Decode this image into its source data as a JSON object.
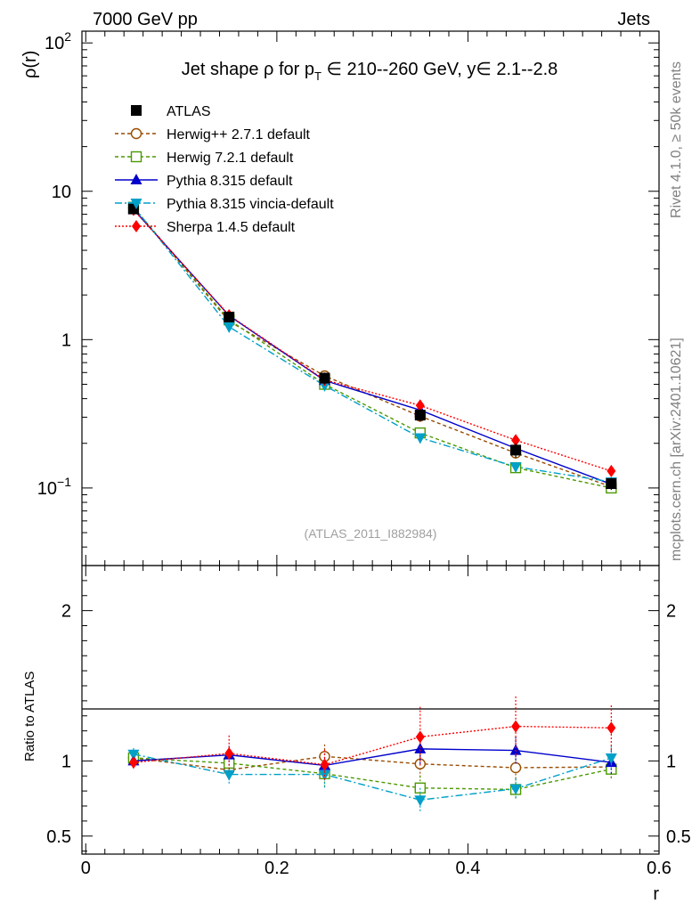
{
  "header": {
    "energy_label": "7000 GeV pp",
    "category_label": "Jets"
  },
  "side_labels": {
    "rivet": "Rivet 4.1.0, ≥ 50k events",
    "mcplots": "mcplots.cern.ch [arXiv:2401.10621]"
  },
  "chart_data": {
    "type": "line",
    "title": "Jet shape ρ for p_T ∈ 210--260 GeV, y∈ 2.1--2.8",
    "title_parts": {
      "prefix": "Jet shape ρ for p",
      "sub": "T",
      "suffix": " ∈ 210--260 GeV, y∈ 2.1--2.8"
    },
    "analysis_tag": "(ATLAS_2011_I882984)",
    "xlabel": "r",
    "ylabel": "ρ(r)",
    "ratio_ylabel": "Ratio to ATLAS",
    "xlim": [
      -0.004,
      0.6
    ],
    "ylim": [
      0.03,
      120
    ],
    "ratio_ylim": [
      0.38,
      2.3
    ],
    "yscale": "log",
    "x_ticks": [
      {
        "value": 0,
        "label": "0"
      },
      {
        "value": 0.2,
        "label": "0.2"
      },
      {
        "value": 0.4,
        "label": "0.4"
      },
      {
        "value": 0.6,
        "label": "0.6"
      }
    ],
    "y_ticks": [
      {
        "value": 0.1,
        "base": "10",
        "exp": "−1"
      },
      {
        "value": 1,
        "base": "1",
        "exp": ""
      },
      {
        "value": 10,
        "base": "10",
        "exp": ""
      },
      {
        "value": 100,
        "base": "10",
        "exp": "2"
      }
    ],
    "ratio_ticks": [
      {
        "value": 0.5,
        "label": "0.5"
      },
      {
        "value": 1,
        "label": "1"
      },
      {
        "value": 2,
        "label": "2"
      }
    ],
    "x": [
      0.05,
      0.15,
      0.25,
      0.35,
      0.45,
      0.55
    ],
    "reference": {
      "name": "ATLAS",
      "values": [
        7.6,
        1.42,
        0.55,
        0.31,
        0.18,
        0.107
      ],
      "errors": [
        0.4,
        0.1,
        0.05,
        0.03,
        0.02,
        0.01
      ]
    },
    "series": [
      {
        "name": "Herwig++ 2.7.1 default",
        "color": "#994c00",
        "dash": "4,3",
        "marker": "circle-open",
        "values": [
          7.75,
          1.33,
          0.57,
          0.305,
          0.172,
          0.102
        ],
        "ratio": [
          1.02,
          0.94,
          1.03,
          0.98,
          0.955,
          0.96
        ],
        "ratio_err": [
          0.04,
          0.06,
          0.08,
          0.09,
          0.08,
          0.08
        ]
      },
      {
        "name": "Herwig 7.2.1 default",
        "color": "#4c9900",
        "dash": "4,3",
        "marker": "square-open",
        "values": [
          7.8,
          1.36,
          0.5,
          0.235,
          0.137,
          0.1
        ],
        "ratio": [
          1.02,
          0.985,
          0.915,
          0.82,
          0.81,
          0.945
        ],
        "ratio_err": [
          0.04,
          0.06,
          0.09,
          0.08,
          0.07,
          0.07
        ]
      },
      {
        "name": "Pythia 8.315 default",
        "color": "#0000cc",
        "dash": "",
        "marker": "triangle-up",
        "values": [
          7.55,
          1.45,
          0.53,
          0.335,
          0.185,
          0.106
        ],
        "ratio": [
          1.0,
          1.04,
          0.97,
          1.08,
          1.07,
          0.99
        ],
        "ratio_err": [
          0.04,
          0.06,
          0.08,
          0.1,
          0.09,
          0.08
        ]
      },
      {
        "name": "Pythia 8.315 vincia-default",
        "color": "#00a0c8",
        "dash": "8,3,2,3",
        "marker": "triangle-down",
        "values": [
          7.9,
          1.22,
          0.49,
          0.218,
          0.139,
          0.11
        ],
        "ratio": [
          1.045,
          0.91,
          0.91,
          0.74,
          0.815,
          1.02
        ],
        "ratio_err": [
          0.04,
          0.07,
          0.09,
          0.08,
          0.07,
          0.08
        ]
      },
      {
        "name": "Sherpa 1.4.5 default",
        "color": "#ff0000",
        "dash": "2,2",
        "marker": "diamond",
        "values": [
          7.5,
          1.46,
          0.535,
          0.36,
          0.21,
          0.13
        ],
        "ratio": [
          0.99,
          1.05,
          0.975,
          1.16,
          1.23,
          1.22
        ],
        "ratio_err": [
          0.04,
          0.12,
          0.1,
          0.2,
          0.2,
          0.15
        ]
      }
    ]
  }
}
